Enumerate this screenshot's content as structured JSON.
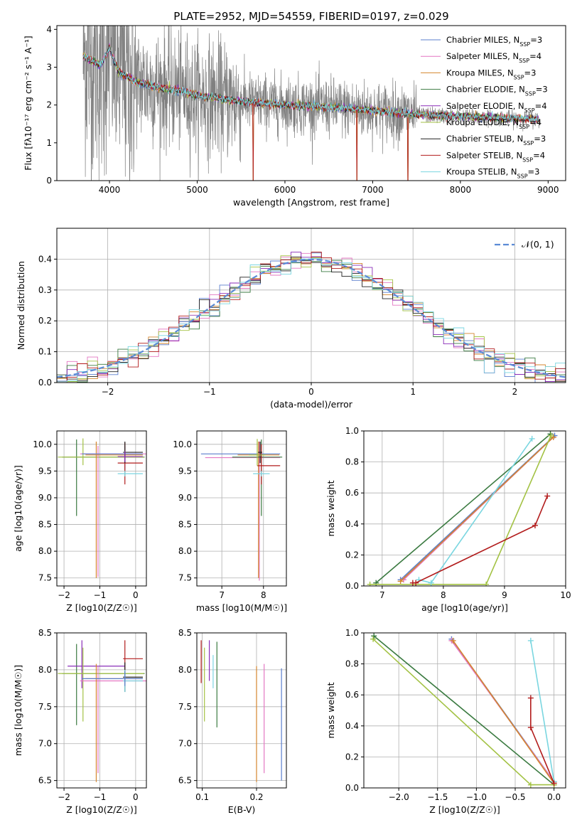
{
  "figure": {
    "title": "PLATE=2952, MJD=54559, FIBERID=0197, z=0.029"
  },
  "colors": {
    "data": "#808080",
    "series": [
      "#5b7fce",
      "#e377c2",
      "#d4862e",
      "#3a7a40",
      "#8a2db8",
      "#a3c244",
      "#202020",
      "#b21c1c",
      "#7ad6e0"
    ],
    "gaussian": "#5b8bd6"
  },
  "chart_data": [
    {
      "id": "spectrum",
      "type": "line",
      "title": "PLATE=2952, MJD=54559, FIBERID=0197, z=0.029",
      "xlabel": "wavelength [Angstrom, rest frame]",
      "ylabel": "Flux [fλ10⁻¹⁷ erg cm⁻² s⁻¹ A⁻¹]",
      "xlim": [
        3400,
        9200
      ],
      "ylim": [
        0,
        4.1
      ],
      "xticks": [
        4000,
        5000,
        6000,
        7000,
        8000,
        9000
      ],
      "yticks": [
        0,
        1,
        2,
        3,
        4
      ],
      "grid": false,
      "legend_position": "top-right",
      "data_range": [
        3700,
        8900
      ],
      "model_anchor_points": {
        "x": [
          3700,
          3900,
          4000,
          4100,
          4300,
          4600,
          4860,
          5000,
          5500,
          6000,
          6500,
          7000,
          7500,
          8000,
          8500,
          8900
        ],
        "y": [
          3.3,
          3.05,
          3.5,
          2.9,
          2.6,
          2.45,
          2.35,
          2.25,
          2.1,
          2.0,
          1.95,
          1.85,
          1.75,
          1.7,
          1.65,
          1.62
        ]
      },
      "series": [
        {
          "name": "Chabrier MILES",
          "nssp": "3"
        },
        {
          "name": "Salpeter MILES",
          "nssp": "4"
        },
        {
          "name": "Kroupa MILES",
          "nssp": "3"
        },
        {
          "name": "Chabrier ELODIE",
          "nssp": "3"
        },
        {
          "name": "Salpeter ELODIE",
          "nssp": "4"
        },
        {
          "name": "Kroupa ELODIE",
          "nssp": "4"
        },
        {
          "name": "Chabrier STELIB",
          "nssp": "3"
        },
        {
          "name": "Salpeter STELIB",
          "nssp": "4"
        },
        {
          "name": "Kroupa STELIB",
          "nssp": "3"
        }
      ]
    },
    {
      "id": "residuals",
      "type": "line",
      "xlabel": "(data-model)/error",
      "ylabel": "Normed distribution",
      "xlim": [
        -2.5,
        2.5
      ],
      "ylim": [
        0,
        0.5
      ],
      "xticks": [
        -2,
        -1,
        0,
        1,
        2
      ],
      "yticks": [
        0.0,
        0.1,
        0.2,
        0.3,
        0.4
      ],
      "grid": true,
      "legend_position": "top-right",
      "gaussian_label": "𝒩(0, 1)",
      "bin_width": 0.1
    },
    {
      "id": "age-vs-Z",
      "type": "scatter",
      "xlabel": "Z [log10(Z/Z☉)]",
      "ylabel": "age [log10(age/yr)]",
      "xlim": [
        -2.2,
        0.3
      ],
      "ylim": [
        7.35,
        10.25
      ],
      "xticks": [
        -2,
        -1,
        0
      ],
      "yticks": [
        7.5,
        8.0,
        8.5,
        9.0,
        9.5,
        10.0
      ],
      "grid": true,
      "crosses": [
        {
          "s": 3,
          "x": -1.65,
          "y": 9.76,
          "xerr": [
            0.4,
            1.9
          ],
          "yerr": [
            1.1,
            0.33
          ]
        },
        {
          "s": 5,
          "x": -1.47,
          "y": 9.76,
          "xerr": [
            0.7,
            1.7
          ],
          "yerr": [
            0.15,
            0.35
          ]
        },
        {
          "s": 1,
          "x": -1.05,
          "y": 9.82,
          "xerr": [
            0.5,
            1.4
          ],
          "yerr": [
            2.3,
            0.15
          ]
        },
        {
          "s": 2,
          "x": -1.1,
          "y": 9.8,
          "xerr": [
            0.3,
            1.3
          ],
          "yerr": [
            2.3,
            0.25
          ]
        },
        {
          "s": 0,
          "x": -0.3,
          "y": 9.82,
          "xerr": [
            1.2,
            0.5
          ],
          "yerr": [
            0.3,
            0.15
          ]
        },
        {
          "s": 7,
          "x": -0.3,
          "y": 9.65,
          "xerr": [
            0.2,
            0.5
          ],
          "yerr": [
            0.4,
            0.38
          ]
        },
        {
          "s": 6,
          "x": -0.3,
          "y": 9.85,
          "xerr": [
            0.05,
            0.5
          ],
          "yerr": [
            0.2,
            0.2
          ]
        },
        {
          "s": 8,
          "x": -0.3,
          "y": 9.45,
          "xerr": [
            0.2,
            0.5
          ],
          "yerr": [
            0.05,
            0.05
          ]
        },
        {
          "s": 4,
          "x": -0.3,
          "y": 9.77,
          "xerr": [
            0.2,
            0.5
          ],
          "yerr": [
            0.1,
            0.1
          ]
        }
      ]
    },
    {
      "id": "age-vs-mass",
      "type": "scatter",
      "xlabel": "mass [log10(M/M☉)]",
      "ylabel": "",
      "xlim": [
        6.4,
        8.55
      ],
      "ylim": [
        7.35,
        10.25
      ],
      "xticks": [
        7,
        8
      ],
      "yticks": [
        7.5,
        8.0,
        8.5,
        9.0,
        9.5,
        10.0
      ],
      "grid": true,
      "crosses": [
        {
          "s": 0,
          "x": 7.9,
          "y": 9.82,
          "xerr": [
            1.4,
            0.5
          ],
          "yerr": [
            0.3,
            0.15
          ]
        },
        {
          "s": 1,
          "x": 7.9,
          "y": 9.75,
          "xerr": [
            1.3,
            0.5
          ],
          "yerr": [
            2.3,
            0.3
          ]
        },
        {
          "s": 2,
          "x": 7.88,
          "y": 9.8,
          "xerr": [
            0.5,
            0.5
          ],
          "yerr": [
            2.3,
            0.25
          ]
        },
        {
          "s": 3,
          "x": 7.95,
          "y": 9.76,
          "xerr": [
            0.7,
            0.5
          ],
          "yerr": [
            1.1,
            0.33
          ]
        },
        {
          "s": 7,
          "x": 7.95,
          "y": 9.6,
          "xerr": [
            0.1,
            0.45
          ],
          "yerr": [
            0.35,
            0.4
          ]
        },
        {
          "s": 8,
          "x": 7.95,
          "y": 9.45,
          "xerr": [
            0.2,
            0.2
          ],
          "yerr": [
            0.05,
            0.05
          ]
        },
        {
          "s": 6,
          "x": 7.92,
          "y": 9.85,
          "xerr": [
            0.05,
            0.05
          ],
          "yerr": [
            0.2,
            0.2
          ]
        },
        {
          "s": 5,
          "x": 7.85,
          "y": 9.8,
          "xerr": [
            0.2,
            0.2
          ],
          "yerr": [
            0.2,
            0.3
          ]
        }
      ]
    },
    {
      "id": "weight-vs-age",
      "type": "line",
      "xlabel": "age [log10(age/yr)]",
      "ylabel": "mass weight",
      "xlim": [
        6.7,
        10.0
      ],
      "ylim": [
        0,
        1.0
      ],
      "xticks": [
        7,
        8,
        9,
        10
      ],
      "yticks": [
        0.0,
        0.2,
        0.4,
        0.6,
        0.8,
        1.0
      ],
      "grid": true,
      "series": [
        {
          "s": 3,
          "x": [
            6.9,
            9.75
          ],
          "y": [
            0.02,
            0.98
          ]
        },
        {
          "s": 0,
          "x": [
            7.3,
            9.82
          ],
          "y": [
            0.04,
            0.97
          ]
        },
        {
          "s": 1,
          "x": [
            7.35,
            9.8
          ],
          "y": [
            0.04,
            0.96
          ]
        },
        {
          "s": 2,
          "x": [
            7.3,
            9.8
          ],
          "y": [
            0.03,
            0.96
          ]
        },
        {
          "s": 5,
          "x": [
            6.8,
            8.7,
            9.76
          ],
          "y": [
            0.01,
            0.01,
            0.97
          ]
        },
        {
          "s": 8,
          "x": [
            7.6,
            7.8,
            9.45
          ],
          "y": [
            0.04,
            0.02,
            0.95
          ]
        },
        {
          "s": 7,
          "x": [
            7.5,
            7.55,
            9.5,
            9.7
          ],
          "y": [
            0.02,
            0.02,
            0.39,
            0.58
          ]
        }
      ]
    },
    {
      "id": "mass-vs-Z",
      "type": "scatter",
      "xlabel": "Z [log10(Z/Z☉)]",
      "ylabel": "mass [log10(M/M☉)]",
      "xlim": [
        -2.2,
        0.3
      ],
      "ylim": [
        6.4,
        8.5
      ],
      "xticks": [
        -2,
        -1,
        0
      ],
      "yticks": [
        6.5,
        7.0,
        7.5,
        8.0,
        8.5
      ],
      "grid": true,
      "crosses": [
        {
          "s": 3,
          "x": -1.65,
          "y": 7.95,
          "xerr": [
            0.4,
            1.9
          ],
          "yerr": [
            0.7,
            0.4
          ]
        },
        {
          "s": 4,
          "x": -1.5,
          "y": 8.05,
          "xerr": [
            0.4,
            1.2
          ],
          "yerr": [
            0.3,
            0.35
          ]
        },
        {
          "s": 5,
          "x": -1.47,
          "y": 7.95,
          "xerr": [
            0.7,
            1.7
          ],
          "yerr": [
            0.65,
            0.35
          ]
        },
        {
          "s": 1,
          "x": -1.05,
          "y": 7.85,
          "xerr": [
            0.5,
            1.4
          ],
          "yerr": [
            1.25,
            0.2
          ]
        },
        {
          "s": 2,
          "x": -1.1,
          "y": 7.88,
          "xerr": [
            0.3,
            1.3
          ],
          "yerr": [
            1.4,
            0.2
          ]
        },
        {
          "s": 7,
          "x": -0.3,
          "y": 8.15,
          "xerr": [
            0.05,
            0.5
          ],
          "yerr": [
            0.35,
            0.25
          ]
        },
        {
          "s": 6,
          "x": -0.3,
          "y": 7.9,
          "xerr": [
            0.05,
            0.5
          ],
          "yerr": [
            0.2,
            0.2
          ]
        },
        {
          "s": 8,
          "x": -0.3,
          "y": 7.85,
          "xerr": [
            0.05,
            0.5
          ],
          "yerr": [
            0.15,
            0.15
          ]
        },
        {
          "s": 0,
          "x": -0.3,
          "y": 7.88,
          "xerr": [
            1.2,
            0.5
          ],
          "yerr": [
            0.1,
            0.1
          ]
        }
      ]
    },
    {
      "id": "mass-vs-ebv",
      "type": "scatter",
      "xlabel": "E(B-V)",
      "ylabel": "",
      "xlim": [
        0.09,
        0.255
      ],
      "ylim": [
        6.4,
        8.5
      ],
      "xticks": [
        0.1,
        0.2
      ],
      "yticks": [
        6.5,
        7.0,
        7.5,
        8.0,
        8.5
      ],
      "grid": true,
      "bars": [
        {
          "s": 7,
          "x": 0.098,
          "y0": 7.82,
          "y1": 8.4
        },
        {
          "s": 5,
          "x": 0.104,
          "y0": 7.3,
          "y1": 8.3
        },
        {
          "s": 4,
          "x": 0.113,
          "y0": 7.85,
          "y1": 8.4
        },
        {
          "s": 8,
          "x": 0.12,
          "y0": 7.75,
          "y1": 8.2
        },
        {
          "s": 3,
          "x": 0.127,
          "y0": 7.22,
          "y1": 8.38
        },
        {
          "s": 2,
          "x": 0.2,
          "y0": 6.48,
          "y1": 8.05
        },
        {
          "s": 1,
          "x": 0.214,
          "y0": 6.6,
          "y1": 8.08
        },
        {
          "s": 0,
          "x": 0.246,
          "y0": 6.5,
          "y1": 8.02
        }
      ]
    },
    {
      "id": "weight-vs-Z",
      "type": "line",
      "xlabel": "Z [log10(Z/Z☉)]",
      "ylabel": "mass weight",
      "xlim": [
        -2.45,
        0.15
      ],
      "ylim": [
        0,
        1.0
      ],
      "xticks": [
        -2.0,
        -1.5,
        -1.0,
        -0.5,
        0.0
      ],
      "yticks": [
        0.0,
        0.2,
        0.4,
        0.6,
        0.8,
        1.0
      ],
      "grid": true,
      "series": [
        {
          "s": 3,
          "x": [
            -2.32,
            0.0
          ],
          "y": [
            0.98,
            0.02
          ]
        },
        {
          "s": 5,
          "x": [
            -2.33,
            -0.3,
            0.0
          ],
          "y": [
            0.96,
            0.02,
            0.02
          ]
        },
        {
          "s": 0,
          "x": [
            -1.32,
            0.0
          ],
          "y": [
            0.96,
            0.04
          ]
        },
        {
          "s": 1,
          "x": [
            -1.32,
            0.0
          ],
          "y": [
            0.95,
            0.04
          ]
        },
        {
          "s": 2,
          "x": [
            -1.3,
            0.0
          ],
          "y": [
            0.95,
            0.03
          ]
        },
        {
          "s": 8,
          "x": [
            -0.3,
            0.0
          ],
          "y": [
            0.95,
            0.04
          ]
        },
        {
          "s": 7,
          "x": [
            -0.3,
            -0.3,
            0.0
          ],
          "y": [
            0.58,
            0.39,
            0.03
          ]
        }
      ]
    }
  ]
}
